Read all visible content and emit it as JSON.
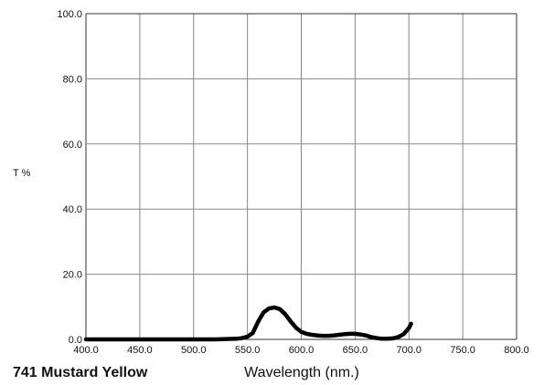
{
  "chart_data": {
    "type": "line",
    "title": "741 Mustard Yellow",
    "xlabel": "Wavelength (nm.)",
    "ylabel": "T %",
    "xlim": [
      400,
      800
    ],
    "ylim": [
      0,
      100
    ],
    "x_ticks": [
      "400.0",
      "450.0",
      "500.0",
      "550.0",
      "600.0",
      "650.0",
      "700.0",
      "750.0",
      "800.0"
    ],
    "y_ticks": [
      "0.0",
      "20.0",
      "40.0",
      "60.0",
      "80.0",
      "100.0"
    ],
    "grid": true,
    "series": [
      {
        "color": "#000000",
        "x": [
          400,
          420,
          440,
          460,
          480,
          500,
          520,
          530,
          540,
          545,
          550,
          555,
          560,
          565,
          570,
          575,
          580,
          585,
          590,
          595,
          600,
          605,
          610,
          615,
          620,
          625,
          630,
          635,
          640,
          645,
          650,
          655,
          660,
          665,
          670,
          675,
          680,
          685,
          690,
          695,
          700,
          702
        ],
        "y": [
          0,
          0,
          0,
          0,
          0,
          0,
          0,
          0.1,
          0.2,
          0.4,
          0.8,
          2.0,
          5.5,
          8.3,
          9.5,
          9.8,
          9.3,
          7.8,
          5.6,
          3.6,
          2.3,
          1.7,
          1.4,
          1.2,
          1.1,
          1.1,
          1.2,
          1.4,
          1.6,
          1.7,
          1.7,
          1.5,
          1.2,
          0.7,
          0.4,
          0.2,
          0.2,
          0.3,
          0.7,
          1.6,
          3.5,
          4.8
        ]
      }
    ]
  }
}
